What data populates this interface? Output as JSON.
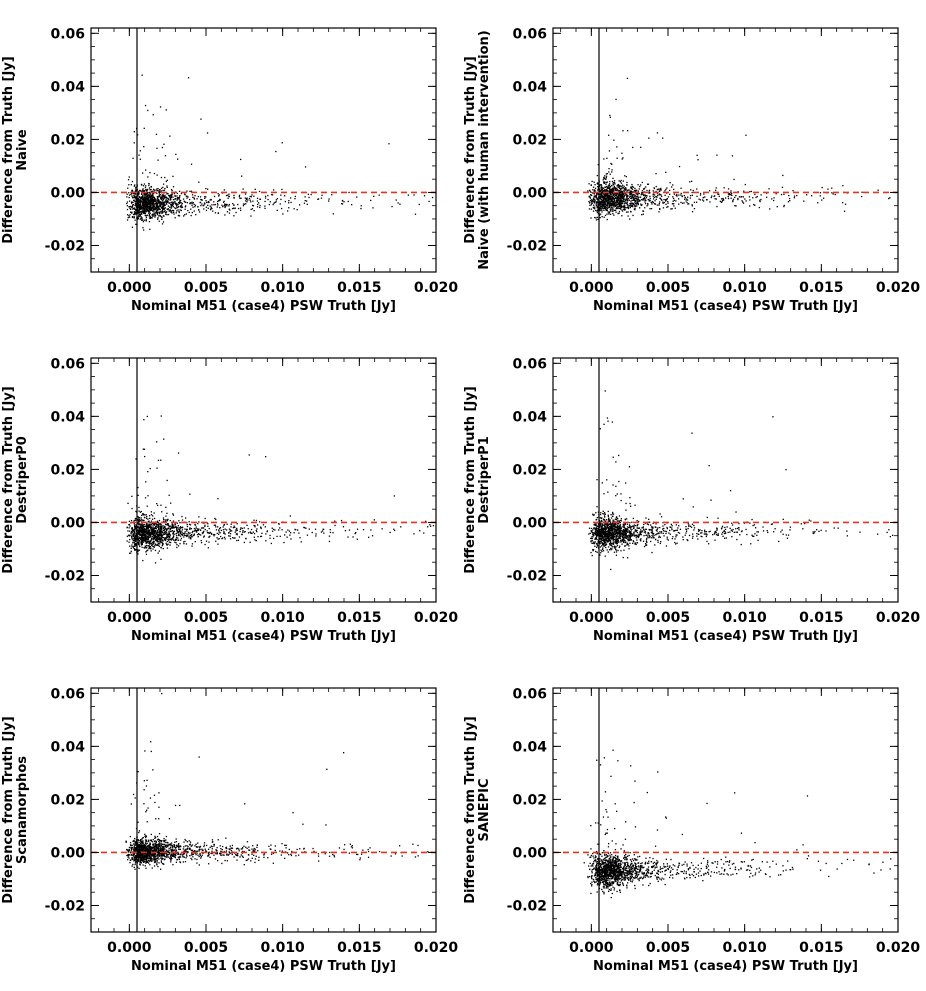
{
  "chart_data": [
    {
      "type": "scatter",
      "series_name": "Naive",
      "xlabel": "Nominal M51 (case4) PSW Truth [Jy]",
      "ylabel": "Difference from Truth [Jy]",
      "ylabel2": "Naive",
      "xlim": [
        -0.0025,
        0.02
      ],
      "ylim": [
        -0.03,
        0.062
      ],
      "xticks": [
        "0.000",
        "0.005",
        "0.010",
        "0.015",
        "0.020"
      ],
      "yticks": [
        "-0.02",
        "0.00",
        "0.02",
        "0.04",
        "0.06"
      ],
      "reference_line": {
        "y": 0.0,
        "style": "dashed",
        "color": "#e8321f"
      },
      "cloud": {
        "peak_x": 0.0003,
        "mean_offset": -0.004,
        "spread": 0.006,
        "n_points": 1400
      },
      "points_color": "#000000"
    },
    {
      "type": "scatter",
      "series_name": "Naive (with human intervention)",
      "xlabel": "Nominal M51 (case4) PSW Truth [Jy]",
      "ylabel": "Difference from Truth [Jy]",
      "ylabel2": "Naive (with human intervention)",
      "xlim": [
        -0.0025,
        0.02
      ],
      "ylim": [
        -0.03,
        0.062
      ],
      "xticks": [
        "0.000",
        "0.005",
        "0.010",
        "0.015",
        "0.020"
      ],
      "yticks": [
        "-0.02",
        "0.00",
        "0.02",
        "0.04",
        "0.06"
      ],
      "reference_line": {
        "y": 0.0,
        "style": "dashed",
        "color": "#e8321f"
      },
      "cloud": {
        "peak_x": 0.0003,
        "mean_offset": -0.002,
        "spread": 0.006,
        "n_points": 1400
      },
      "points_color": "#000000"
    },
    {
      "type": "scatter",
      "series_name": "DestriperP0",
      "xlabel": "Nominal M51 (case4) PSW Truth [Jy]",
      "ylabel": "Difference from Truth [Jy]",
      "ylabel2": "DestriperP0",
      "xlim": [
        -0.0025,
        0.02
      ],
      "ylim": [
        -0.03,
        0.062
      ],
      "xticks": [
        "0.000",
        "0.005",
        "0.010",
        "0.015",
        "0.020"
      ],
      "yticks": [
        "-0.02",
        "0.00",
        "0.02",
        "0.04",
        "0.06"
      ],
      "reference_line": {
        "y": 0.0,
        "style": "dashed",
        "color": "#e8321f"
      },
      "cloud": {
        "peak_x": 0.0003,
        "mean_offset": -0.004,
        "spread": 0.006,
        "n_points": 1400
      },
      "points_color": "#000000"
    },
    {
      "type": "scatter",
      "series_name": "DestriperP1",
      "xlabel": "Nominal M51 (case4) PSW Truth [Jy]",
      "ylabel": "Difference from Truth [Jy]",
      "ylabel2": "DestriperP1",
      "xlim": [
        -0.0025,
        0.02
      ],
      "ylim": [
        -0.03,
        0.062
      ],
      "xticks": [
        "0.000",
        "0.005",
        "0.010",
        "0.015",
        "0.020"
      ],
      "yticks": [
        "-0.02",
        "0.00",
        "0.02",
        "0.04",
        "0.06"
      ],
      "reference_line": {
        "y": 0.0,
        "style": "dashed",
        "color": "#e8321f"
      },
      "cloud": {
        "peak_x": 0.0003,
        "mean_offset": -0.004,
        "spread": 0.006,
        "n_points": 1400
      },
      "points_color": "#000000"
    },
    {
      "type": "scatter",
      "series_name": "Scanamorphos",
      "xlabel": "Nominal M51 (case4) PSW Truth [Jy]",
      "ylabel": "Difference from Truth [Jy]",
      "ylabel2": "Scanamorphos",
      "xlim": [
        -0.0025,
        0.02
      ],
      "ylim": [
        -0.03,
        0.062
      ],
      "xticks": [
        "0.000",
        "0.005",
        "0.010",
        "0.015",
        "0.020"
      ],
      "yticks": [
        "-0.02",
        "0.00",
        "0.02",
        "0.04",
        "0.06"
      ],
      "reference_line": {
        "y": 0.0,
        "style": "dashed",
        "color": "#e8321f"
      },
      "cloud": {
        "peak_x": 0.0003,
        "mean_offset": 0.0005,
        "spread": 0.005,
        "n_points": 1400
      },
      "points_color": "#000000"
    },
    {
      "type": "scatter",
      "series_name": "SANEPIC",
      "xlabel": "Nominal M51 (case4) PSW Truth [Jy]",
      "ylabel": "Difference from Truth [Jy]",
      "ylabel2": "SANEPIC",
      "xlim": [
        -0.0025,
        0.02
      ],
      "ylim": [
        -0.03,
        0.062
      ],
      "xticks": [
        "0.000",
        "0.005",
        "0.010",
        "0.015",
        "0.020"
      ],
      "yticks": [
        "-0.02",
        "0.00",
        "0.02",
        "0.04",
        "0.06"
      ],
      "reference_line": {
        "y": 0.0,
        "style": "dashed",
        "color": "#e8321f"
      },
      "cloud": {
        "peak_x": 0.0003,
        "mean_offset": -0.007,
        "spread": 0.006,
        "n_points": 1400
      },
      "points_color": "#000000"
    }
  ]
}
